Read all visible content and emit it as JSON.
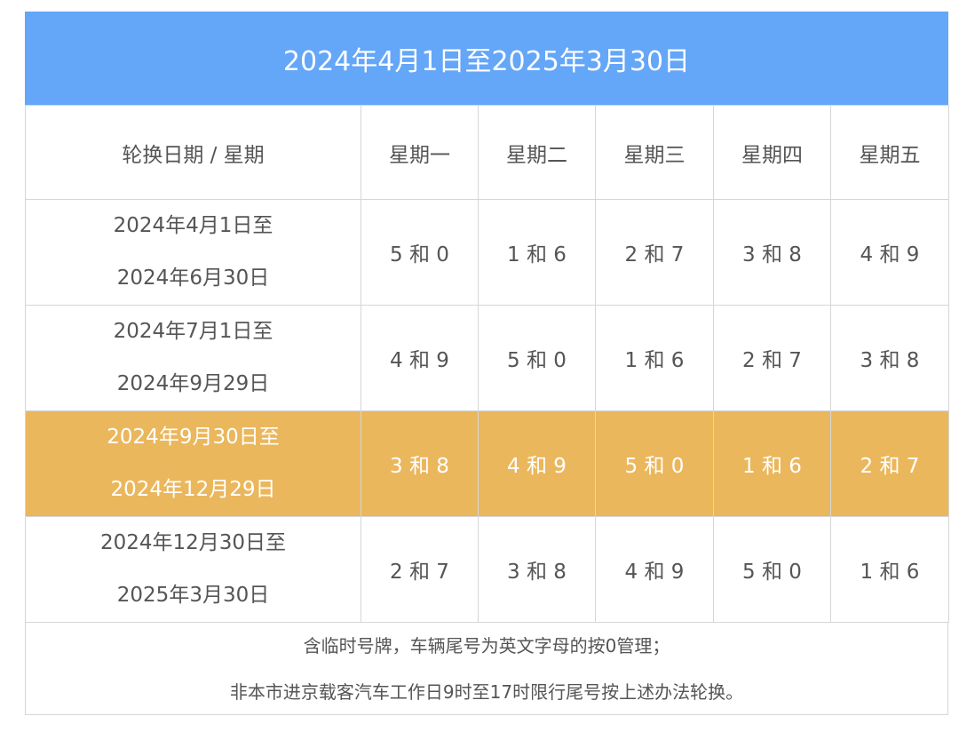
{
  "title": "2024年4月1日至2025年3月30日",
  "header": {
    "period_label": "轮换日期 / 星期",
    "days": [
      "星期一",
      "星期二",
      "星期三",
      "星期四",
      "星期五"
    ]
  },
  "rows": [
    {
      "start": "2024年4月1日至",
      "end": "2024年6月30日",
      "values": [
        "5 和 0",
        "1 和 6",
        "2 和 7",
        "3 和 8",
        "4 和 9"
      ]
    },
    {
      "start": "2024年7月1日至",
      "end": "2024年9月29日",
      "values": [
        "4 和 9",
        "5 和 0",
        "1 和 6",
        "2 和 7",
        "3 和 8"
      ]
    },
    {
      "start": "2024年9月30日至",
      "end": "2024年12月29日",
      "values": [
        "3 和 8",
        "4 和 9",
        "5 和 0",
        "1 和 6",
        "2 和 7"
      ]
    },
    {
      "start": "2024年12月30日至",
      "end": "2025年3月30日",
      "values": [
        "2 和 7",
        "3 和 8",
        "4 和 9",
        "5 和 0",
        "1 和 6"
      ]
    }
  ],
  "notes": [
    "含临时号牌，车辆尾号为英文字母的按0管理；",
    "非本市进京载客汽车工作日9时至17时限行尾号按上述办法轮换。"
  ],
  "colors": {
    "title_background": "#64a6f8",
    "highlight_background": "#ebb75c",
    "border": "#d6d6d6",
    "text": "#555555"
  },
  "highlighted_row": 2
}
